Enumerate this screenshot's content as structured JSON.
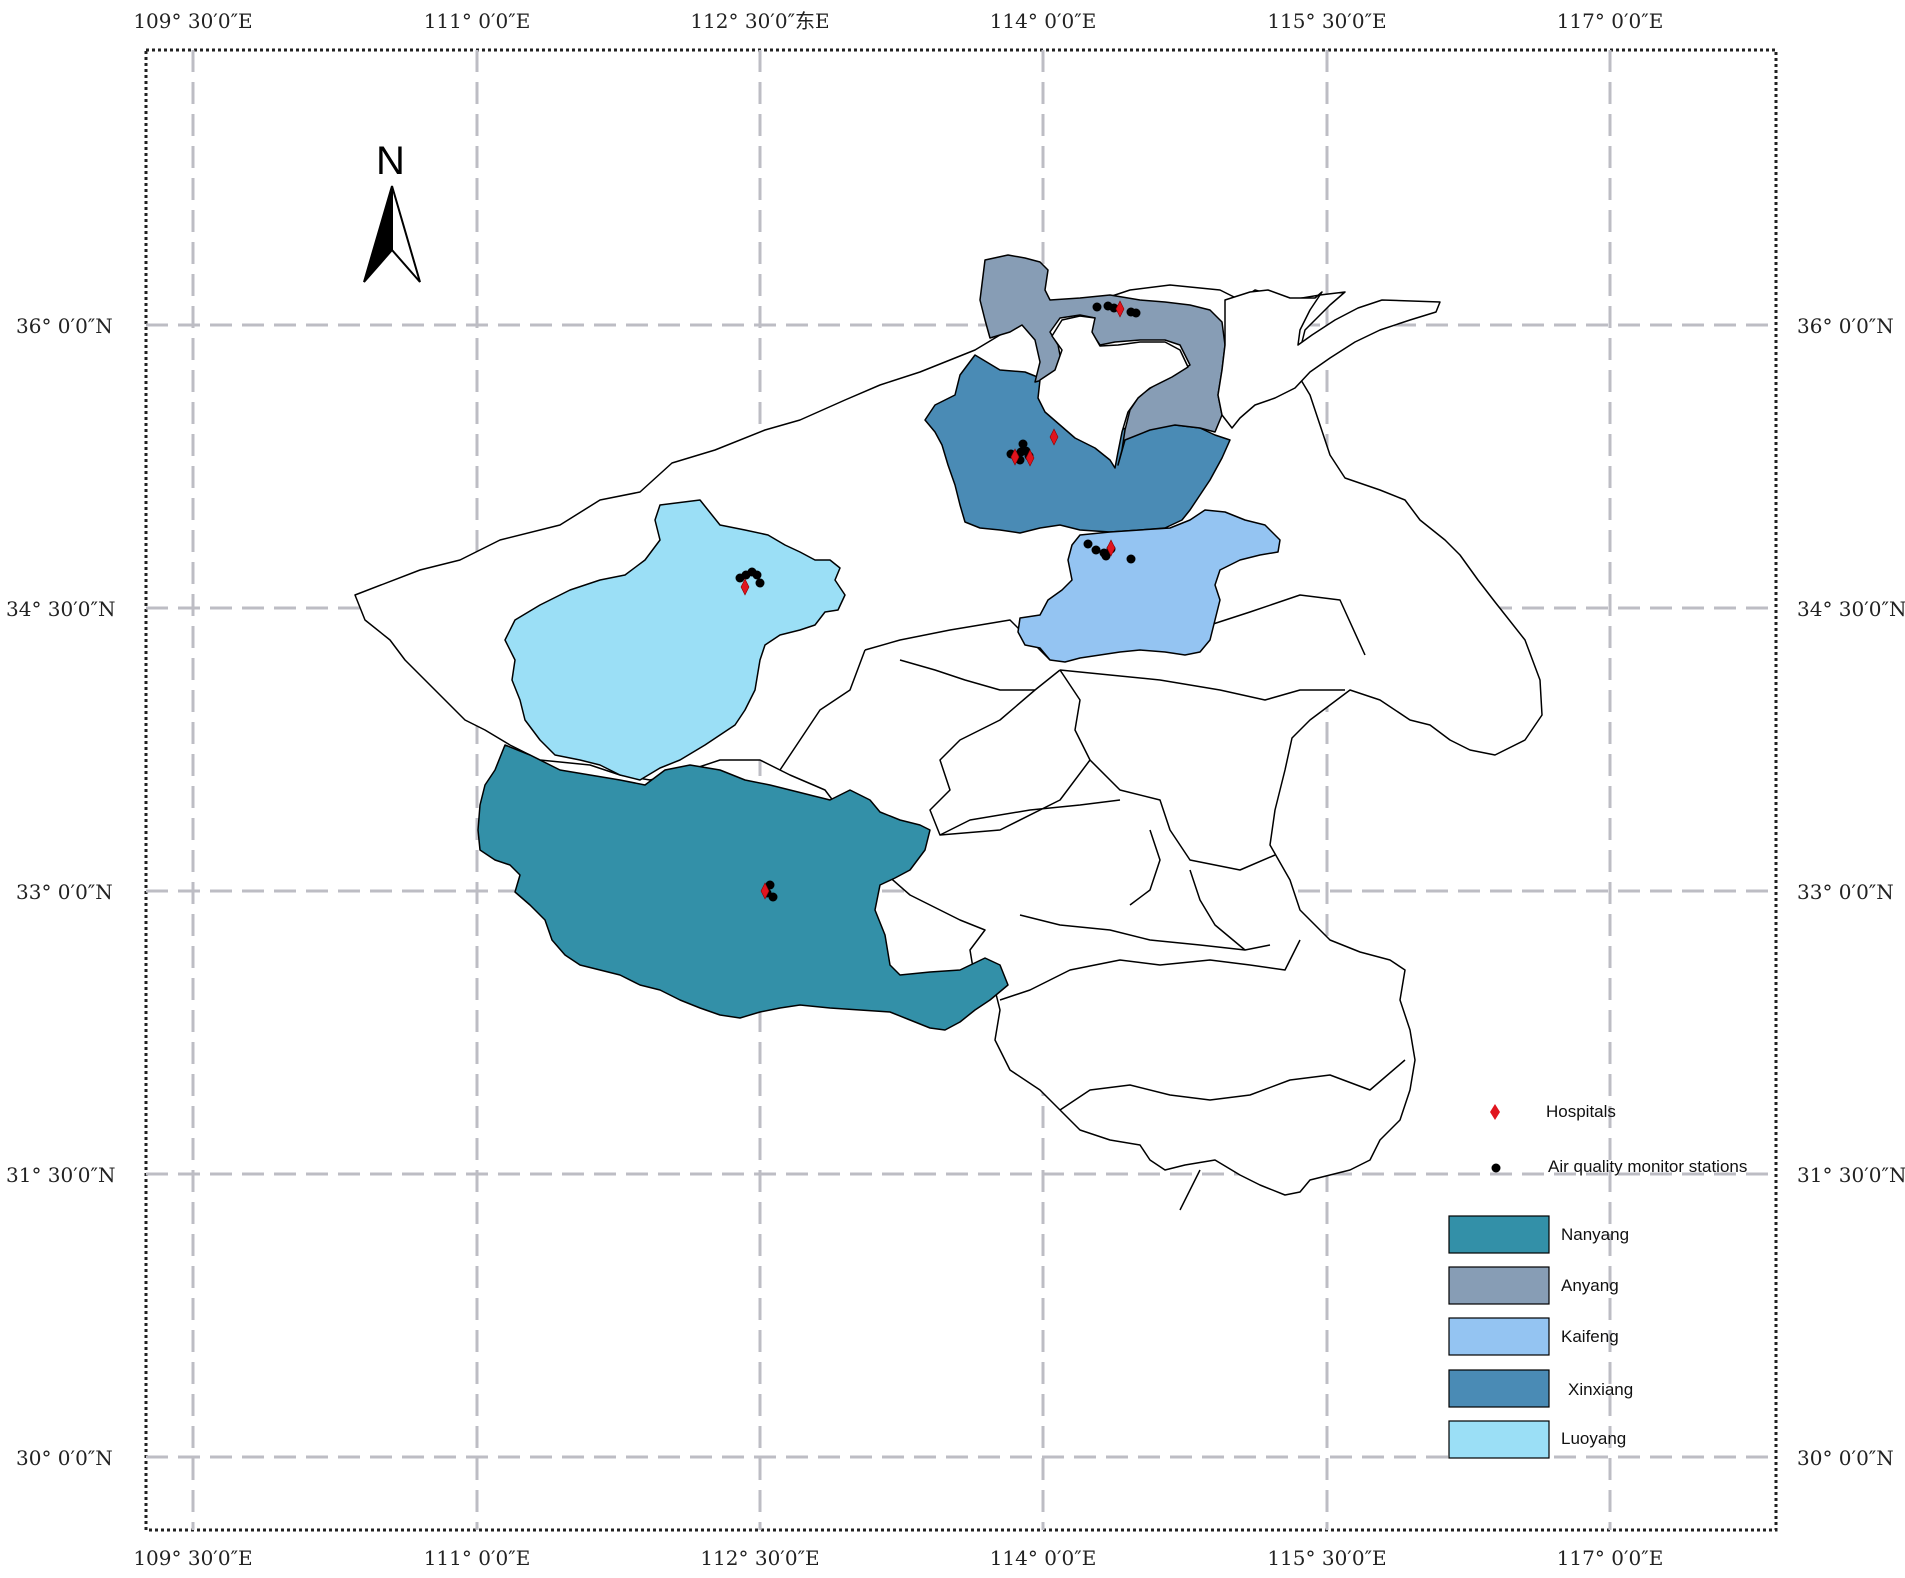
{
  "map": {
    "north_label": "N",
    "colors": {
      "Nanyang": "#3390A8",
      "Anyang": "#879DB5",
      "Kaifeng": "#94C4F2",
      "Xinxiang": "#4A8BB5",
      "Luoyang": "#9BDFF6",
      "other": "#FFFFFF",
      "hospital": "#E0141E",
      "station": "#000000",
      "grid": "#BDBDC4"
    },
    "lon_labels_top": [
      "109° 30′0″E",
      "111° 0′0″E",
      "112° 30′0″东E",
      "114° 0′0″E",
      "115° 30′0″E",
      "117° 0′0″E"
    ],
    "lon_labels_bottom": [
      "109° 30′0″E",
      "111° 0′0″E",
      "112° 30′0″E",
      "114° 0′0″E",
      "115° 30′0″E",
      "117° 0′0″E"
    ],
    "lat_labels_left": [
      "36° 0′0″N",
      "34° 30′0″N",
      "33° 0′0″N",
      "31° 30′0″N",
      "30° 0′0″N"
    ],
    "lat_labels_right": [
      "36° 0′0″N",
      "34° 30′0″N",
      "33° 0′0″N",
      "31° 30′0″N",
      "30° 0′0″N"
    ]
  },
  "legend": {
    "hospitals": "Hospitals",
    "stations": "Air quality monitor stations",
    "regions": [
      "Nanyang",
      "Anyang",
      "Kaifeng",
      "Xinxiang",
      "Luoyang"
    ]
  }
}
